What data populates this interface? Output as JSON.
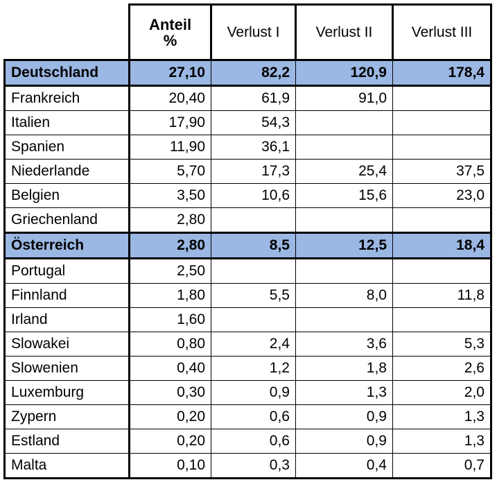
{
  "header": {
    "anteil_line1": "Anteil",
    "anteil_line2": "%",
    "verlust_1": "Verlust I",
    "verlust_2": "Verlust II",
    "verlust_3": "Verlust III"
  },
  "highlight_color": "#9bb7e3",
  "rows": [
    {
      "country": "Deutschland",
      "anteil": "27,10",
      "v1": "82,2",
      "v2": "120,9",
      "v3": "178,4",
      "highlight": true
    },
    {
      "country": "Frankreich",
      "anteil": "20,40",
      "v1": "61,9",
      "v2": "91,0",
      "v3": ""
    },
    {
      "country": "Italien",
      "anteil": "17,90",
      "v1": "54,3",
      "v2": "",
      "v3": ""
    },
    {
      "country": "Spanien",
      "anteil": "11,90",
      "v1": "36,1",
      "v2": "",
      "v3": ""
    },
    {
      "country": "Niederlande",
      "anteil": "5,70",
      "v1": "17,3",
      "v2": "25,4",
      "v3": "37,5"
    },
    {
      "country": "Belgien",
      "anteil": "3,50",
      "v1": "10,6",
      "v2": "15,6",
      "v3": "23,0"
    },
    {
      "country": "Griechenland",
      "anteil": "2,80",
      "v1": "",
      "v2": "",
      "v3": ""
    },
    {
      "country": "Österreich",
      "anteil": "2,80",
      "v1": "8,5",
      "v2": "12,5",
      "v3": "18,4",
      "highlight": true
    },
    {
      "country": "Portugal",
      "anteil": "2,50",
      "v1": "",
      "v2": "",
      "v3": ""
    },
    {
      "country": "Finnland",
      "anteil": "1,80",
      "v1": "5,5",
      "v2": "8,0",
      "v3": "11,8"
    },
    {
      "country": "Irland",
      "anteil": "1,60",
      "v1": "",
      "v2": "",
      "v3": ""
    },
    {
      "country": "Slowakei",
      "anteil": "0,80",
      "v1": "2,4",
      "v2": "3,6",
      "v3": "5,3"
    },
    {
      "country": "Slowenien",
      "anteil": "0,40",
      "v1": "1,2",
      "v2": "1,8",
      "v3": "2,6"
    },
    {
      "country": "Luxemburg",
      "anteil": "0,30",
      "v1": "0,9",
      "v2": "1,3",
      "v3": "2,0"
    },
    {
      "country": "Zypern",
      "anteil": "0,20",
      "v1": "0,6",
      "v2": "0,9",
      "v3": "1,3"
    },
    {
      "country": "Estland",
      "anteil": "0,20",
      "v1": "0,6",
      "v2": "0,9",
      "v3": "1,3"
    },
    {
      "country": "Malta",
      "anteil": "0,10",
      "v1": "0,3",
      "v2": "0,4",
      "v3": "0,7"
    }
  ]
}
